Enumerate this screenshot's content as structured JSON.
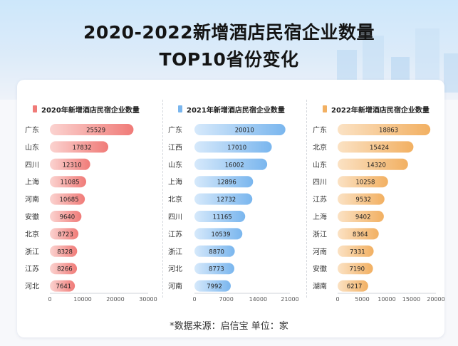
{
  "page": {
    "title_line1": "2020-2022新增酒店民宿企业数量",
    "title_line2": "TOP10省份变化",
    "footnote": "*数据来源：启信宝   单位：家"
  },
  "chart_data": [
    {
      "type": "bar",
      "orientation": "horizontal",
      "title": "2020年新增酒店民宿企业数量",
      "color": "#f07b78",
      "color_light": "#fbd3d0",
      "categories": [
        "广东",
        "山东",
        "四川",
        "上海",
        "河南",
        "安徽",
        "北京",
        "浙江",
        "江苏",
        "河北"
      ],
      "values": [
        25529,
        17832,
        12310,
        11085,
        10685,
        9640,
        8723,
        8328,
        8266,
        7641
      ],
      "xlim": [
        0,
        30000
      ],
      "xticks": [
        0,
        10000,
        20000,
        30000
      ]
    },
    {
      "type": "bar",
      "orientation": "horizontal",
      "title": "2021年新增酒店民宿企业数量",
      "color": "#7ab6ee",
      "color_light": "#d6e9fb",
      "categories": [
        "广东",
        "江西",
        "山东",
        "上海",
        "北京",
        "四川",
        "江苏",
        "浙江",
        "河北",
        "河南"
      ],
      "values": [
        20010,
        17010,
        16002,
        12896,
        12732,
        11165,
        10539,
        8870,
        8773,
        7992
      ],
      "xlim": [
        0,
        21000
      ],
      "xticks": [
        0,
        7000,
        14000,
        21000
      ]
    },
    {
      "type": "bar",
      "orientation": "horizontal",
      "title": "2022年新增酒店民宿企业数量",
      "color": "#f2b062",
      "color_light": "#fbe2c4",
      "categories": [
        "广东",
        "北京",
        "山东",
        "四川",
        "江苏",
        "上海",
        "浙江",
        "河南",
        "安徽",
        "湖南"
      ],
      "values": [
        18863,
        15424,
        14320,
        10258,
        9532,
        9402,
        8364,
        7331,
        7190,
        6217
      ],
      "xlim": [
        0,
        20000
      ],
      "xticks": [
        0,
        5000,
        10000,
        15000,
        20000
      ]
    }
  ]
}
